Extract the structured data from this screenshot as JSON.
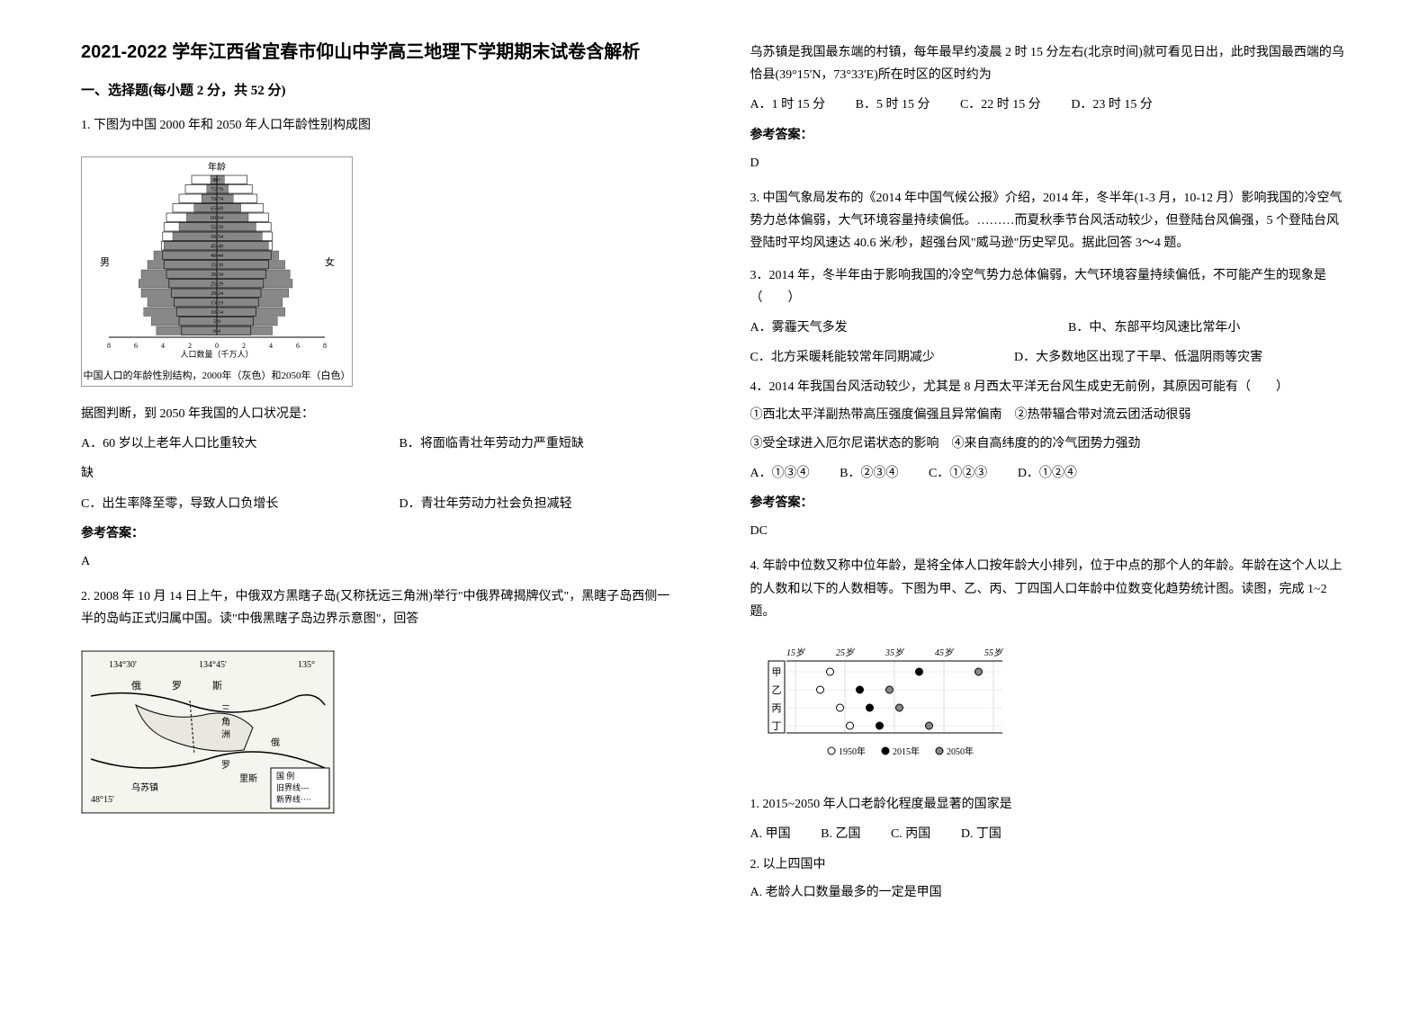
{
  "title": "2021-2022 学年江西省宜春市仰山中学高三地理下学期期末试卷含解析",
  "section1": "一、选择题(每小题 2 分，共 52 分)",
  "q1": {
    "stem": "1. 下图为中国 2000 年和 2050 年人口年龄性别构成图",
    "pyramid": {
      "title_top": "年龄",
      "label_left": "男",
      "label_right": "女",
      "groups": [
        "80+",
        "75-79",
        "70-74",
        "65-69",
        "60-64",
        "55-59",
        "50-54",
        "45-49",
        "40-44",
        "35-39",
        "30-34",
        "25-29",
        "20-24",
        "15-19",
        "10-14",
        "5-9",
        "0-4"
      ],
      "values_2000_m": [
        0.5,
        0.8,
        1.2,
        1.8,
        2.4,
        3.0,
        3.5,
        4.2,
        5.0,
        5.5,
        6.0,
        6.2,
        6.0,
        5.5,
        5.8,
        5.2,
        4.8
      ],
      "values_2000_f": [
        0.6,
        0.9,
        1.3,
        1.9,
        2.5,
        3.1,
        3.6,
        4.1,
        4.9,
        5.4,
        5.8,
        6.0,
        5.7,
        5.2,
        5.4,
        4.8,
        4.4
      ],
      "values_2050_m": [
        2.0,
        2.5,
        3.0,
        3.5,
        4.0,
        4.2,
        4.3,
        4.4,
        4.3,
        4.2,
        4.0,
        3.8,
        3.6,
        3.4,
        3.2,
        3.0,
        2.8
      ],
      "values_2050_f": [
        2.4,
        2.8,
        3.2,
        3.7,
        4.1,
        4.3,
        4.4,
        4.4,
        4.3,
        4.1,
        3.9,
        3.7,
        3.5,
        3.3,
        3.1,
        2.9,
        2.7
      ],
      "xaxis_label": "人口数量（千万人）",
      "caption": "中国人口的年龄性别结构，2000年（灰色）和2050年（白色）",
      "xticks": [
        8,
        6,
        4,
        2,
        0,
        2,
        4,
        6,
        8
      ],
      "bar_fill_2000": "#888888",
      "bar_fill_2050": "#ffffff",
      "bar_stroke": "#000000",
      "bg": "#ffffff"
    },
    "subq": "据图判断，到 2050 年我国的人口状况是：",
    "optA": "A．60 岁以上老年人口比重较大",
    "optB": "B．将面临青壮年劳动力严重短缺",
    "optC": "C．出生率降至零，导致人口负增长",
    "optD": "D．青壮年劳动力社会负担减轻",
    "answer_label": "参考答案：",
    "answer": "A"
  },
  "q2": {
    "stem": "2. 2008 年 10 月 14 日上午，中俄双方黑瞎子岛(又称抚远三角洲)举行\"中俄界碑揭牌仪式\"，黑瞎子岛西侧一半的岛屿正式归属中国。读\"中俄黑瞎子岛边界示意图\"，回答",
    "map": {
      "lon_left": "134°30'",
      "lon_mid": "134°45'",
      "lon_right": "135°",
      "lat": "48°15'",
      "labels": [
        "俄",
        "罗",
        "斯",
        "三",
        "角",
        "洲",
        "俄",
        "罗",
        "里斯",
        "乌苏镇"
      ],
      "legend": [
        "国 例",
        "旧界线---",
        "新界线····"
      ],
      "bg": "#f5f5f0",
      "water": "#d8d8d0",
      "border": "#000000"
    },
    "para1": "乌苏镇是我国最东端的村镇，每年最早约凌晨 2 时 15 分左右(北京时间)就可看见日出，此时我国最西端的乌恰县(39°15'N，73°33'E)所在时区的区时约为",
    "optA": "A．1 时 15 分",
    "optB": "B．5 时 15 分",
    "optC": "C．22 时 15 分",
    "optD": "D．23 时 15 分",
    "answer_label": "参考答案：",
    "answer": "D"
  },
  "q3": {
    "stem": "3. 中国气象局发布的《2014 年中国气候公报》介绍，2014 年，冬半年(1-3 月，10-12 月）影响我国的冷空气势力总体偏弱，大气环境容量持续偏低。………而夏秋季节台风活动较少，但登陆台风偏强，5 个登陆台风登陆时平均风速达 40.6 米/秒，超强台风\"威马逊\"历史罕见。据此回答 3～4 题。",
    "sub3": "3．2014 年，冬半年由于影响我国的冷空气势力总体偏弱，大气环境容量持续偏低，不可能产生的现象是（　　）",
    "s3A": "A．雾霾天气多发",
    "s3B": "B．中、东部平均风速比常年小",
    "s3C": "C．北方采暖耗能较常年同期减少",
    "s3D": "D．大多数地区出现了干旱、低温阴雨等灾害",
    "sub4": "4．2014 年我国台风活动较少，尤其是 8 月西太平洋无台风生成史无前例，其原因可能有（　　）",
    "line1": "①西北太平洋副热带高压强度偏强且异常偏南　②热带辐合带对流云团活动很弱",
    "line2": "③受全球进入厄尔尼诺状态的影响　④来自高纬度的的冷气团势力强劲",
    "s4A": "A．①③④",
    "s4B": "B．②③④",
    "s4C": "C．①②③",
    "s4D": "D．①②④",
    "answer_label": "参考答案：",
    "answer": "DC"
  },
  "q4": {
    "stem": "4. 年龄中位数又称中位年龄，是将全体人口按年龄大小排列，位于中点的那个人的年龄。年龄在这个人以上的人数和以下的人数相等。下图为甲、乙、丙、丁四国人口年龄中位数变化趋势统计图。读图，完成 1~2 题。",
    "chart": {
      "xlabels": [
        "15岁",
        "25岁",
        "35岁",
        "45岁",
        "55岁"
      ],
      "rows": [
        "甲",
        "乙",
        "丙",
        "丁"
      ],
      "series_1950": {
        "甲": 22,
        "乙": 20,
        "丙": 24,
        "丁": 26
      },
      "series_2015": {
        "甲": 40,
        "乙": 28,
        "丙": 30,
        "丁": 32
      },
      "series_2050": {
        "甲": 52,
        "乙": 34,
        "丙": 36,
        "丁": 42
      },
      "legend": [
        "1950年",
        "2015年",
        "2050年"
      ],
      "marker_1950": "○",
      "marker_2015": "●",
      "marker_2050": "●",
      "color_1950": "#ffffff",
      "color_2015": "#000000",
      "color_2050": "#888888",
      "stroke": "#000000",
      "bg": "#ffffff"
    },
    "sub1": "1. 2015~2050 年人口老龄化程度最显著的国家是",
    "s1A": "A. 甲国",
    "s1B": "B. 乙国",
    "s1C": "C. 丙国",
    "s1D": "D. 丁国",
    "sub2": "2. 以上四国中",
    "s2A": "A. 老龄人口数量最多的一定是甲国"
  }
}
